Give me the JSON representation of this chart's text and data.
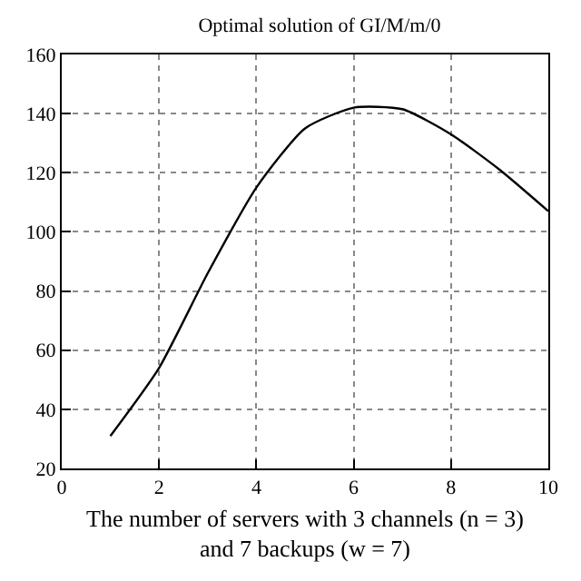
{
  "chart_data": {
    "type": "line",
    "title": "Optimal solution of GI/M/m/0",
    "xlabel": "The number of servers with 3 channels (n = 3)\nand 7 backups (w = 7)",
    "x": [
      1,
      2,
      3,
      4,
      5,
      6,
      7,
      8,
      9,
      10
    ],
    "series": [
      {
        "color": "#000000",
        "values": [
          31,
          54,
          86,
          115,
          135,
          142,
          141.5,
          133,
          121,
          107
        ]
      }
    ],
    "xlim": [
      0,
      10
    ],
    "xticks": [
      0,
      2,
      4,
      6,
      8,
      10
    ],
    "ylim": [
      20,
      160
    ],
    "yticks": [
      20,
      40,
      60,
      80,
      100,
      120,
      140,
      160
    ],
    "grid": true,
    "legend": false,
    "marker": "none",
    "line_style": "solid"
  }
}
